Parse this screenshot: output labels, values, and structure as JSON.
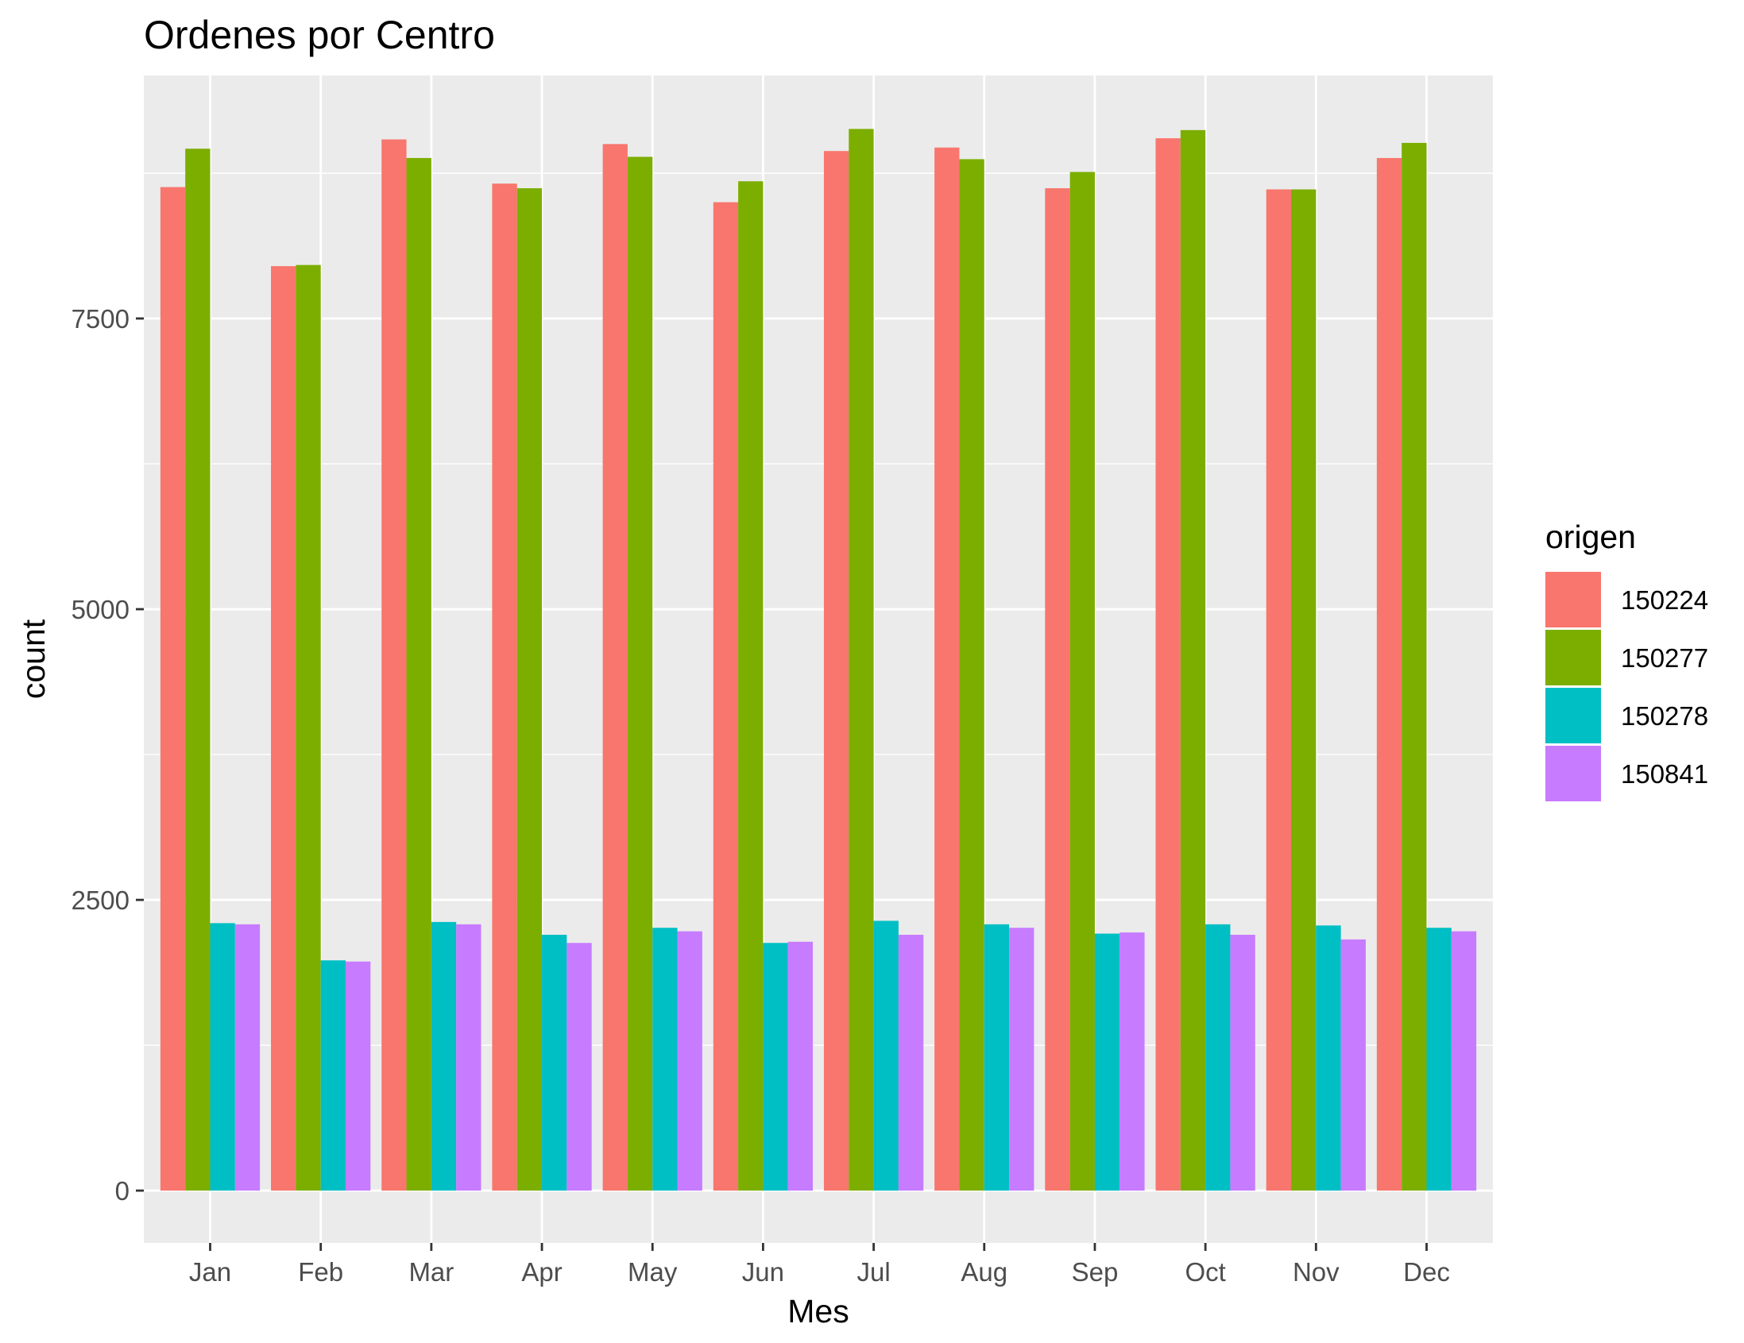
{
  "chart_data": {
    "type": "bar",
    "title": "Ordenes por Centro",
    "xlabel": "Mes",
    "ylabel": "count",
    "categories": [
      "Jan",
      "Feb",
      "Mar",
      "Apr",
      "May",
      "Jun",
      "Jul",
      "Aug",
      "Sep",
      "Oct",
      "Nov",
      "Dec"
    ],
    "series": [
      {
        "name": "150224",
        "color": "#F8766D",
        "values": [
          8630,
          7950,
          9040,
          8660,
          9000,
          8500,
          8940,
          8970,
          8620,
          9050,
          8610,
          8880
        ]
      },
      {
        "name": "150277",
        "color": "#7CAE00",
        "values": [
          8960,
          7960,
          8880,
          8620,
          8890,
          8680,
          9130,
          8870,
          8760,
          9120,
          8610,
          9010
        ]
      },
      {
        "name": "150278",
        "color": "#00BFC4",
        "values": [
          2300,
          1980,
          2310,
          2200,
          2260,
          2130,
          2320,
          2290,
          2210,
          2290,
          2280,
          2260
        ]
      },
      {
        "name": "150841",
        "color": "#C77CFF",
        "values": [
          2290,
          1970,
          2290,
          2130,
          2230,
          2140,
          2200,
          2260,
          2220,
          2200,
          2160,
          2230
        ]
      }
    ],
    "yticks": [
      0,
      2500,
      5000,
      7500
    ],
    "ylim": [
      -450,
      9590
    ],
    "grid": true,
    "panel_background": "#EBEBEB",
    "legend": {
      "title": "origen",
      "position": "right"
    }
  }
}
